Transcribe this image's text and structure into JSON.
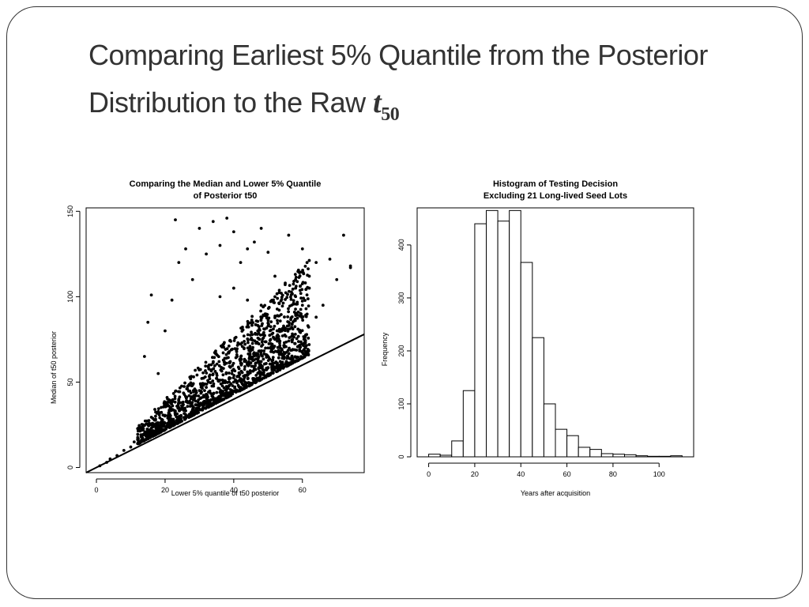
{
  "slide": {
    "title_line1": "Comparing Earliest 5% Quantile from the Posterior",
    "title_line2": "Distribution to the Raw ",
    "title_symbol": "t",
    "title_subscript": "50"
  },
  "chart_data": [
    {
      "type": "scatter",
      "title_line1": "Comparing the Median and Lower 5% Quantile",
      "title_line2": "of Posterior t50",
      "xlabel": "Lower 5% quantile of t50 posterior",
      "ylabel": "Median of t50 posterior",
      "xlim": [
        -3,
        78
      ],
      "ylim": [
        -3,
        152
      ],
      "xticks": [
        0,
        20,
        40,
        60
      ],
      "yticks": [
        0,
        50,
        100,
        150
      ],
      "grid": false,
      "reference_line": {
        "slope": 1,
        "intercept": 0
      },
      "points": [
        [
          1,
          1
        ],
        [
          3,
          3
        ],
        [
          4,
          5
        ],
        [
          6,
          7
        ],
        [
          8,
          10
        ],
        [
          10,
          12
        ],
        [
          11,
          15
        ],
        [
          12,
          14
        ],
        [
          13,
          18
        ],
        [
          14,
          16
        ],
        [
          15,
          20
        ],
        [
          16,
          19
        ],
        [
          17,
          25
        ],
        [
          18,
          22
        ],
        [
          19,
          28
        ],
        [
          20,
          24
        ],
        [
          21,
          30
        ],
        [
          22,
          26
        ],
        [
          23,
          33
        ],
        [
          24,
          28
        ],
        [
          25,
          38
        ],
        [
          26,
          31
        ],
        [
          27,
          42
        ],
        [
          28,
          34
        ],
        [
          29,
          45
        ],
        [
          30,
          36
        ],
        [
          31,
          48
        ],
        [
          32,
          38
        ],
        [
          33,
          52
        ],
        [
          34,
          40
        ],
        [
          35,
          55
        ],
        [
          36,
          44
        ],
        [
          37,
          58
        ],
        [
          38,
          46
        ],
        [
          39,
          62
        ],
        [
          40,
          50
        ],
        [
          41,
          65
        ],
        [
          42,
          52
        ],
        [
          43,
          70
        ],
        [
          44,
          56
        ],
        [
          45,
          75
        ],
        [
          46,
          58
        ],
        [
          47,
          80
        ],
        [
          48,
          62
        ],
        [
          50,
          70
        ],
        [
          52,
          75
        ],
        [
          54,
          80
        ],
        [
          56,
          85
        ],
        [
          58,
          90
        ],
        [
          60,
          95
        ],
        [
          62,
          105
        ],
        [
          64,
          88
        ],
        [
          66,
          95
        ],
        [
          70,
          110
        ],
        [
          72,
          136
        ],
        [
          74,
          118
        ],
        [
          14,
          65
        ],
        [
          15,
          85
        ],
        [
          16,
          101
        ],
        [
          18,
          55
        ],
        [
          20,
          80
        ],
        [
          22,
          98
        ],
        [
          23,
          145
        ],
        [
          24,
          120
        ],
        [
          26,
          128
        ],
        [
          28,
          110
        ],
        [
          30,
          140
        ],
        [
          32,
          125
        ],
        [
          34,
          144
        ],
        [
          36,
          130
        ],
        [
          38,
          146
        ],
        [
          40,
          138
        ],
        [
          42,
          120
        ],
        [
          44,
          128
        ],
        [
          46,
          132
        ],
        [
          48,
          140
        ],
        [
          50,
          126
        ],
        [
          52,
          112
        ],
        [
          56,
          136
        ],
        [
          60,
          128
        ],
        [
          64,
          120
        ],
        [
          68,
          122
        ],
        [
          74,
          117
        ],
        [
          36,
          100
        ],
        [
          40,
          105
        ],
        [
          44,
          98
        ],
        [
          48,
          95
        ],
        [
          52,
          100
        ],
        [
          55,
          108
        ],
        [
          58,
          110
        ],
        [
          62,
          112
        ]
      ],
      "point_count_note": ""
    },
    {
      "type": "bar",
      "title_line1": "Histogram of Testing Decision",
      "title_line2": "Excluding 21 Long-lived Seed Lots",
      "xlabel": "Years after acquisition",
      "ylabel": "Frequency",
      "xlim": [
        -5,
        115
      ],
      "ylim": [
        0,
        470
      ],
      "xticks": [
        0,
        20,
        40,
        60,
        80,
        100
      ],
      "yticks": [
        0,
        100,
        200,
        300,
        400
      ],
      "bin_width": 5,
      "bins": [
        0,
        5,
        10,
        15,
        20,
        25,
        30,
        35,
        40,
        45,
        50,
        55,
        60,
        65,
        70,
        75,
        80,
        85,
        90,
        95,
        100,
        105
      ],
      "values": [
        5,
        3,
        30,
        125,
        440,
        465,
        445,
        465,
        367,
        225,
        100,
        52,
        40,
        18,
        14,
        6,
        5,
        4,
        2,
        1,
        1,
        2
      ]
    }
  ]
}
